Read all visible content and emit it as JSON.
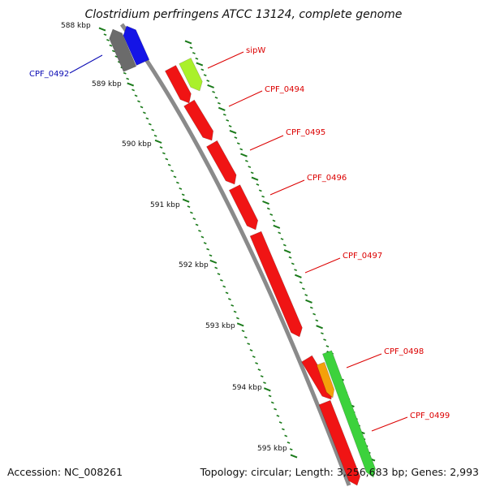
{
  "title": "Clostridium perfringens ATCC 13124, complete genome",
  "footer": {
    "accession": "Accession: NC_008261",
    "summary": "Topology: circular; Length: 3,256,683 bp; Genes: 2,993"
  },
  "ruler": {
    "labels": [
      "588 kbp",
      "589 kbp",
      "590 kbp",
      "591 kbp",
      "592 kbp",
      "593 kbp",
      "594 kbp",
      "595 kbp"
    ]
  },
  "genes": [
    {
      "name": "CPF_0492",
      "strand": "reverse",
      "color": "#1414e6",
      "label_color": "#0a0ab4"
    },
    {
      "name": "",
      "strand": "reverse",
      "color": "#6b6b6b",
      "label_color": ""
    },
    {
      "name": "sipW",
      "strand": "forward",
      "color": "#aaf02a",
      "label_color": "#dc0000"
    },
    {
      "name": "",
      "strand": "forward",
      "color": "#f01414",
      "label_color": ""
    },
    {
      "name": "CPF_0494",
      "strand": "forward",
      "color": "#f01414",
      "label_color": "#dc0000"
    },
    {
      "name": "CPF_0495",
      "strand": "forward",
      "color": "#f01414",
      "label_color": "#dc0000"
    },
    {
      "name": "CPF_0496",
      "strand": "forward",
      "color": "#f01414",
      "label_color": "#dc0000"
    },
    {
      "name": "CPF_0497",
      "strand": "forward",
      "color": "#f01414",
      "label_color": "#dc0000"
    },
    {
      "name": "CPF_0498",
      "strand": "forward",
      "color": "#f01414",
      "label_color": "#dc0000"
    },
    {
      "name": "",
      "strand": "forward",
      "color": "#f5a00a",
      "label_color": ""
    },
    {
      "name": "CPF_0499",
      "strand": "forward",
      "color": "#3cd23c",
      "label_color": "#dc0000"
    },
    {
      "name": "",
      "strand": "forward",
      "color": "#f01414",
      "label_color": ""
    }
  ],
  "colors": {
    "backbone": "#8a8a8a",
    "tick": "#1a7a1a",
    "leader": "#dc0000"
  }
}
